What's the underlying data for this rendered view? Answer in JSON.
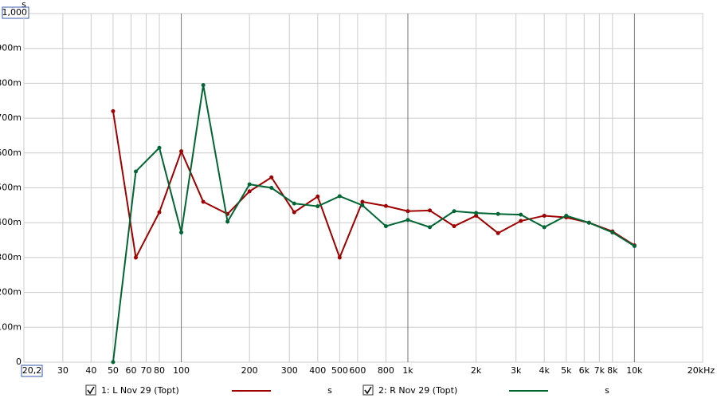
{
  "chart_data": {
    "type": "line",
    "y_label": "s",
    "x": [
      50,
      63,
      80,
      100,
      125,
      160,
      200,
      250,
      315,
      400,
      500,
      630,
      800,
      1000,
      1250,
      1600,
      2000,
      2500,
      3150,
      4000,
      5000,
      6300,
      8000,
      10000
    ],
    "series": [
      {
        "name": "1: L Nov 29 (Topt)",
        "unit": "s",
        "color": "#a00000",
        "values": [
          0.72,
          0.3,
          0.43,
          0.605,
          0.46,
          0.425,
          0.49,
          0.53,
          0.43,
          0.475,
          0.3,
          0.46,
          0.448,
          0.433,
          0.435,
          0.39,
          0.42,
          0.37,
          0.405,
          0.42,
          0.415,
          0.4,
          0.375,
          0.335
        ]
      },
      {
        "name": "2: R Nov 29 (Topt)",
        "unit": "s",
        "color": "#006633",
        "values": [
          0.0,
          0.547,
          0.615,
          0.372,
          0.795,
          0.403,
          0.51,
          0.5,
          0.455,
          0.447,
          0.476,
          0.45,
          0.39,
          0.408,
          0.387,
          0.433,
          0.428,
          0.425,
          0.423,
          0.387,
          0.42,
          0.4,
          0.372,
          0.333
        ]
      }
    ],
    "xscale": "log",
    "xlim": [
      20.2,
      20000
    ],
    "ylim": [
      0,
      1
    ],
    "xticks": [
      {
        "value": 20.2,
        "label": "20,2"
      },
      30,
      40,
      50,
      60,
      70,
      80,
      100,
      200,
      300,
      400,
      500,
      600,
      800,
      {
        "value": 1000,
        "label": "1k"
      },
      {
        "value": 2000,
        "label": "2k"
      },
      {
        "value": 3000,
        "label": "3k"
      },
      {
        "value": 4000,
        "label": "4k"
      },
      {
        "value": 5000,
        "label": "5k"
      },
      {
        "value": 6000,
        "label": "6k"
      },
      {
        "value": 7000,
        "label": "7k"
      },
      {
        "value": 8000,
        "label": "8k"
      },
      {
        "value": 10000,
        "label": "10k"
      },
      {
        "value": 20000,
        "label": "20kHz"
      }
    ],
    "yticks": [
      0,
      {
        "value": 0.1,
        "label": "100m"
      },
      {
        "value": 0.2,
        "label": "200m"
      },
      {
        "value": 0.3,
        "label": "300m"
      },
      {
        "value": 0.4,
        "label": "400m"
      },
      {
        "value": 0.5,
        "label": "500m"
      },
      {
        "value": 0.6,
        "label": "600m"
      },
      {
        "value": 0.7,
        "label": "700m"
      },
      {
        "value": 0.8,
        "label": "800m"
      },
      {
        "value": 0.9,
        "label": "900m"
      },
      {
        "value": 1,
        "label": "1,000"
      }
    ],
    "grid": true
  }
}
